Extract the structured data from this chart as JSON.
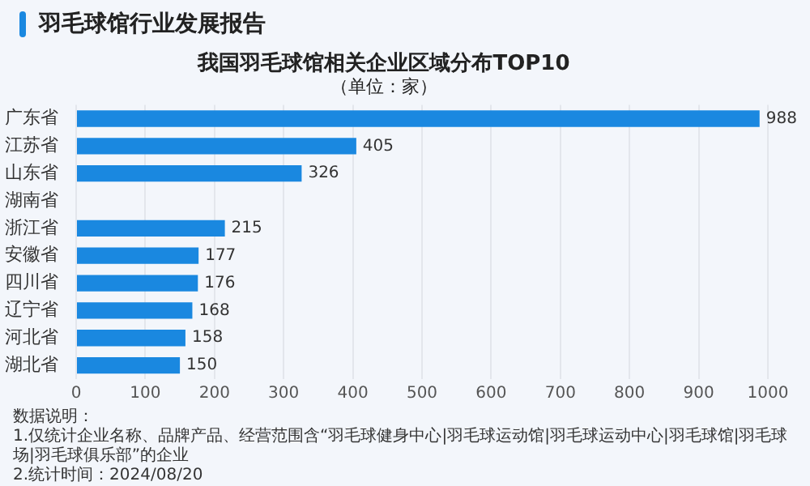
{
  "chart_data": {
    "type": "bar",
    "orientation": "horizontal",
    "title": "我国羽毛球馆相关企业区域分布TOP10",
    "subtitle": "（单位：家）",
    "annotations": [
      "羽毛球馆行业发展报告",
      "数据说明：",
      "1.仅统计企业名称、品牌产品、经营范围含“羽毛球健身中心|羽毛球运动馆|羽毛球运动中心|羽毛球馆|羽毛球场|羽毛球俱乐部”的企业",
      "2.统计时间：2024/08/20"
    ],
    "categories": [
      "广东省",
      "江苏省",
      "山东省",
      "湖南省",
      "浙江省",
      "安徽省",
      "四川省",
      "辽宁省",
      "河北省",
      "湖北省"
    ],
    "values": [
      988,
      405,
      326,
      null,
      215,
      177,
      176,
      168,
      158,
      150
    ],
    "color": "#1a88e0",
    "xlim": [
      0,
      1000
    ],
    "xticks": [
      0,
      100,
      200,
      300,
      400,
      500,
      600,
      700,
      800,
      900,
      1000
    ],
    "grid": "x",
    "data_labels": true,
    "legend": false
  }
}
